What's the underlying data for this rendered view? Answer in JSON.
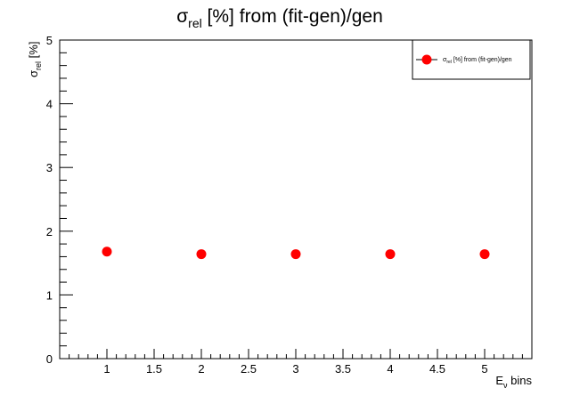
{
  "chart_data": {
    "type": "scatter",
    "title": {
      "main": "σ",
      "sub": "rel",
      "rest": " [%] from (fit-gen)/gen"
    },
    "xlabel": {
      "main": "E",
      "sub": "ν",
      "rest": " bins"
    },
    "ylabel": {
      "main": "σ",
      "sub": "rel",
      "rest": " [%]"
    },
    "xlim": [
      0.5,
      5.5
    ],
    "ylim": [
      0,
      5
    ],
    "x_ticks": [
      1,
      1.5,
      2,
      2.5,
      3,
      3.5,
      4,
      4.5,
      5
    ],
    "x_tick_labels": [
      "1",
      "1.5",
      "2",
      "2.5",
      "3",
      "3.5",
      "4",
      "4.5",
      "5"
    ],
    "y_ticks": [
      0,
      1,
      2,
      3,
      4,
      5
    ],
    "y_tick_labels": [
      "0",
      "1",
      "2",
      "3",
      "4",
      "5"
    ],
    "grid": false,
    "legend_position": "top-right",
    "series": [
      {
        "name": {
          "main": "σ",
          "sub": "rel",
          "rest": " [%] from (fit-gen)/gen"
        },
        "color": "#ff0000",
        "x": [
          1,
          2,
          3,
          4,
          5
        ],
        "y": [
          1.68,
          1.64,
          1.64,
          1.64,
          1.64
        ]
      }
    ]
  }
}
